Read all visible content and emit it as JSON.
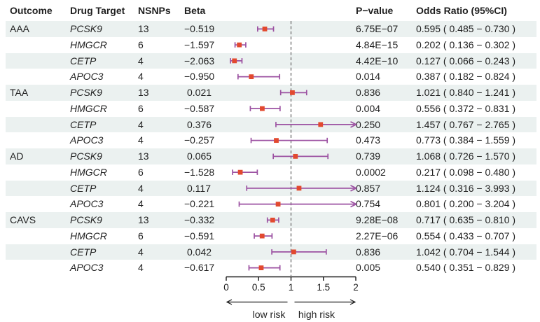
{
  "chart_data": {
    "type": "scatter",
    "variant": "forest-plot",
    "columns": [
      "Outcome",
      "Drug Target",
      "NSNPs",
      "Beta",
      "P−value",
      "Odds Ratio (95%CI)"
    ],
    "rows": [
      {
        "outcome": "AAA",
        "target": "PCSK9",
        "nsnps": "13",
        "beta": "−0.519",
        "pvalue": "6.75E−07",
        "or": 0.595,
        "ci_low": 0.485,
        "ci_high": 0.73,
        "or_text": "0.595 ( 0.485 − 0.730 )"
      },
      {
        "outcome": "",
        "target": "HMGCR",
        "nsnps": "6",
        "beta": "−1.597",
        "pvalue": "4.84E−15",
        "or": 0.202,
        "ci_low": 0.136,
        "ci_high": 0.302,
        "or_text": "0.202 ( 0.136 − 0.302 )"
      },
      {
        "outcome": "",
        "target": "CETP",
        "nsnps": "4",
        "beta": "−2.063",
        "pvalue": "4.42E−10",
        "or": 0.127,
        "ci_low": 0.066,
        "ci_high": 0.243,
        "or_text": "0.127 ( 0.066 − 0.243 )"
      },
      {
        "outcome": "",
        "target": "APOC3",
        "nsnps": "4",
        "beta": "−0.950",
        "pvalue": "0.014",
        "or": 0.387,
        "ci_low": 0.182,
        "ci_high": 0.824,
        "or_text": "0.387 ( 0.182 − 0.824 )"
      },
      {
        "outcome": "TAA",
        "target": "PCSK9",
        "nsnps": "13",
        "beta": "0.021",
        "pvalue": "0.836",
        "or": 1.021,
        "ci_low": 0.84,
        "ci_high": 1.241,
        "or_text": "1.021 ( 0.840 − 1.241 )"
      },
      {
        "outcome": "",
        "target": "HMGCR",
        "nsnps": "6",
        "beta": "−0.587",
        "pvalue": "0.004",
        "or": 0.556,
        "ci_low": 0.372,
        "ci_high": 0.831,
        "or_text": "0.556 ( 0.372 − 0.831 )"
      },
      {
        "outcome": "",
        "target": "CETP",
        "nsnps": "4",
        "beta": "0.376",
        "pvalue": "0.250",
        "or": 1.457,
        "ci_low": 0.767,
        "ci_high": 2.765,
        "or_text": "1.457 ( 0.767 − 2.765 )"
      },
      {
        "outcome": "",
        "target": "APOC3",
        "nsnps": "4",
        "beta": "−0.257",
        "pvalue": "0.473",
        "or": 0.773,
        "ci_low": 0.384,
        "ci_high": 1.559,
        "or_text": "0.773 ( 0.384 − 1.559 )"
      },
      {
        "outcome": "AD",
        "target": "PCSK9",
        "nsnps": "13",
        "beta": "0.065",
        "pvalue": "0.739",
        "or": 1.068,
        "ci_low": 0.726,
        "ci_high": 1.57,
        "or_text": "1.068 ( 0.726 − 1.570 )"
      },
      {
        "outcome": "",
        "target": "HMGCR",
        "nsnps": "6",
        "beta": "−1.528",
        "pvalue": "0.0002",
        "or": 0.217,
        "ci_low": 0.098,
        "ci_high": 0.48,
        "or_text": "0.217 ( 0.098 − 0.480 )"
      },
      {
        "outcome": "",
        "target": "CETP",
        "nsnps": "4",
        "beta": "0.117",
        "pvalue": "0.857",
        "or": 1.124,
        "ci_low": 0.316,
        "ci_high": 3.993,
        "or_text": "1.124 ( 0.316 − 3.993 )"
      },
      {
        "outcome": "",
        "target": "APOC3",
        "nsnps": "4",
        "beta": "−0.221",
        "pvalue": "0.754",
        "or": 0.801,
        "ci_low": 0.2,
        "ci_high": 3.204,
        "or_text": "0.801 ( 0.200 − 3.204 )"
      },
      {
        "outcome": "CAVS",
        "target": "PCSK9",
        "nsnps": "13",
        "beta": "−0.332",
        "pvalue": "9.28E−08",
        "or": 0.717,
        "ci_low": 0.635,
        "ci_high": 0.81,
        "or_text": "0.717 ( 0.635 − 0.810 )"
      },
      {
        "outcome": "",
        "target": "HMGCR",
        "nsnps": "6",
        "beta": "−0.591",
        "pvalue": "2.27E−06",
        "or": 0.554,
        "ci_low": 0.433,
        "ci_high": 0.707,
        "or_text": "0.554 ( 0.433 − 0.707 )"
      },
      {
        "outcome": "",
        "target": "CETP",
        "nsnps": "4",
        "beta": "0.042",
        "pvalue": "0.836",
        "or": 1.042,
        "ci_low": 0.704,
        "ci_high": 1.544,
        "or_text": "1.042 ( 0.704 − 1.544 )"
      },
      {
        "outcome": "",
        "target": "APOC3",
        "nsnps": "4",
        "beta": "−0.617",
        "pvalue": "0.005",
        "or": 0.54,
        "ci_low": 0.351,
        "ci_high": 0.829,
        "or_text": "0.540 ( 0.351 − 0.829 )"
      }
    ],
    "axis": {
      "xlim": [
        0,
        2
      ],
      "ticks": [
        0,
        0.5,
        1,
        1.5,
        2
      ],
      "tick_labels": [
        "0",
        "0.5",
        "1",
        "1.5",
        "2"
      ],
      "reference_line": 1,
      "grid": false
    },
    "annotations": {
      "low_risk": "low risk",
      "high_risk": "high risk"
    }
  },
  "colors": {
    "stripe": "#EBF1F0",
    "ci_line": "#9C52A2",
    "marker": "#E2492F",
    "reference_line": "#8A8A8A",
    "axis": "#1A1A1A",
    "text": "#1F1F1F"
  }
}
